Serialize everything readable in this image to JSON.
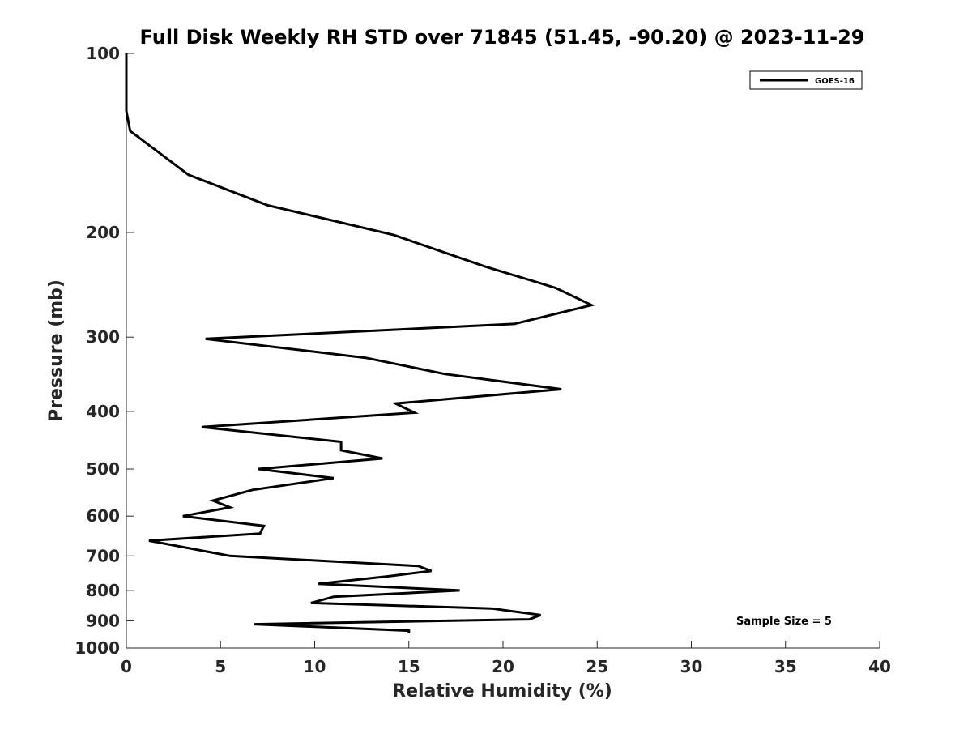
{
  "chart_data": {
    "type": "line",
    "title": "Full Disk Weekly RH STD over 71845 (51.45, -90.20) @ 2023-11-29",
    "xlabel": "Relative Humidity (%)",
    "ylabel": "Pressure (mb)",
    "xlim": [
      0,
      40
    ],
    "ylim": [
      100,
      1000
    ],
    "y_scale": "log",
    "y_reversed": true,
    "xticks": [
      0,
      5,
      10,
      15,
      20,
      25,
      30,
      35,
      40
    ],
    "yticks": [
      100,
      200,
      300,
      400,
      500,
      600,
      700,
      800,
      900,
      1000
    ],
    "grid": false,
    "legend_position": "top-right",
    "annotation": "Sample Size = 5",
    "series": [
      {
        "name": "GOES-16",
        "color": "#000000",
        "points": [
          [
            0.0,
            100
          ],
          [
            0.0,
            125
          ],
          [
            0.2,
            135
          ],
          [
            3.3,
            160
          ],
          [
            7.5,
            180
          ],
          [
            14.2,
            202
          ],
          [
            19.0,
            228
          ],
          [
            22.8,
            248
          ],
          [
            24.7,
            265
          ],
          [
            20.6,
            285
          ],
          [
            4.2,
            302
          ],
          [
            12.7,
            325
          ],
          [
            16.9,
            346
          ],
          [
            23.1,
            367
          ],
          [
            14.3,
            388
          ],
          [
            15.3,
            402
          ],
          [
            4.0,
            425
          ],
          [
            11.4,
            450
          ],
          [
            11.4,
            465
          ],
          [
            13.6,
            480
          ],
          [
            7.0,
            500
          ],
          [
            11.0,
            518
          ],
          [
            6.7,
            542
          ],
          [
            4.6,
            565
          ],
          [
            5.5,
            580
          ],
          [
            3.0,
            600
          ],
          [
            7.3,
            623
          ],
          [
            7.1,
            642
          ],
          [
            1.2,
            660
          ],
          [
            5.5,
            700
          ],
          [
            15.5,
            728
          ],
          [
            16.2,
            742
          ],
          [
            13.8,
            758
          ],
          [
            10.2,
            780
          ],
          [
            17.7,
            800
          ],
          [
            11.0,
            820
          ],
          [
            9.8,
            840
          ],
          [
            19.4,
            858
          ],
          [
            22.0,
            880
          ],
          [
            21.4,
            895
          ],
          [
            6.8,
            912
          ],
          [
            15.0,
            935
          ],
          [
            15.0,
            945
          ]
        ]
      }
    ]
  }
}
